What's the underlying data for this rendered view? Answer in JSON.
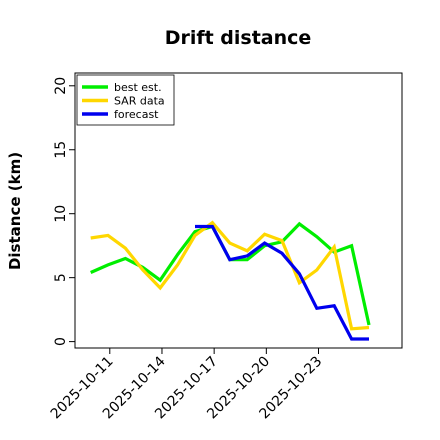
{
  "chart_data": {
    "type": "line",
    "title": "Drift distance",
    "xlabel": "",
    "ylabel": "Distance (km)",
    "x_ticks": [
      "2025-10-11",
      "2025-10-14",
      "2025-10-17",
      "2025-10-20",
      "2025-10-23"
    ],
    "x_tick_days": [
      11,
      14,
      17,
      20,
      23
    ],
    "xlim": [
      9.0,
      27.8
    ],
    "y_ticks": [
      0,
      5,
      10,
      15,
      20
    ],
    "ylim": [
      -0.5,
      21
    ],
    "legend_position": "top-left",
    "series": [
      {
        "name": "best est.",
        "color": "#00ee00",
        "x": [
          9.9,
          10.9,
          11.9,
          12.9,
          13.9,
          14.9,
          15.9,
          16.9,
          17.9,
          18.9,
          19.9,
          20.9,
          21.9,
          22.9,
          23.9,
          24.9,
          25.9
        ],
        "y": [
          5.4,
          6.0,
          6.5,
          5.8,
          4.8,
          6.8,
          8.6,
          9.0,
          6.4,
          6.4,
          7.5,
          7.8,
          9.2,
          8.2,
          7.0,
          7.5,
          1.3
        ]
      },
      {
        "name": "SAR data",
        "color": "#ffd700",
        "x": [
          9.9,
          10.9,
          11.9,
          12.9,
          13.9,
          14.9,
          15.9,
          16.9,
          17.9,
          18.9,
          19.9,
          20.9,
          21.9,
          22.9,
          23.9,
          24.9,
          25.9
        ],
        "y": [
          8.1,
          8.3,
          7.3,
          5.6,
          4.2,
          6.0,
          8.3,
          9.3,
          7.7,
          7.1,
          8.4,
          7.9,
          4.6,
          5.6,
          7.4,
          1.0,
          1.1
        ]
      },
      {
        "name": "forecast",
        "color": "#0000ee",
        "x": [
          15.9,
          16.9,
          17.9,
          18.9,
          19.9,
          20.9,
          21.9,
          22.9,
          23.9,
          24.9,
          25.9
        ],
        "y": [
          9.0,
          9.0,
          6.4,
          6.7,
          7.7,
          6.9,
          5.3,
          2.6,
          2.8,
          0.2,
          0.2
        ]
      }
    ]
  }
}
